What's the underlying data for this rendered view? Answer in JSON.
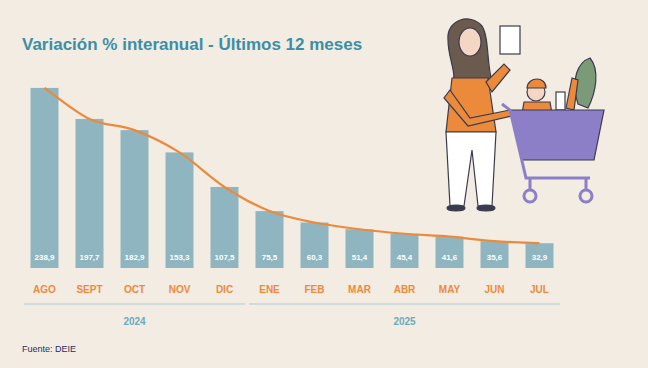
{
  "chart_data": {
    "type": "bar",
    "title": "Variación % interanual - Últimos 12 meses",
    "categories": [
      "AGO",
      "SEPT",
      "OCT",
      "NOV",
      "DIC",
      "ENE",
      "FEB",
      "MAR",
      "ABR",
      "MAY",
      "JUN",
      "JUL"
    ],
    "series": [
      {
        "type": "bar",
        "color": "#8fb5c0",
        "values": [
          238.9,
          197.7,
          182.9,
          153.3,
          107.5,
          75.5,
          60.3,
          51.4,
          45.4,
          41.6,
          35.6,
          32.9
        ],
        "value_labels": [
          "238,9",
          "197,7",
          "182,9",
          "153,3",
          "107,5",
          "75,5",
          "60,3",
          "51,4",
          "45,4",
          "41,6",
          "35,6",
          "32,9"
        ]
      },
      {
        "type": "line",
        "color": "#ec8a3c",
        "values": [
          238.9,
          197.7,
          182.9,
          153.3,
          107.5,
          75.5,
          60.3,
          51.4,
          45.4,
          41.6,
          35.6,
          32.9
        ]
      }
    ],
    "data_labels": true,
    "x_groups": [
      {
        "label": "2024",
        "from": "AGO",
        "to": "DIC"
      },
      {
        "label": "2025",
        "from": "ENE",
        "to": "JUL"
      }
    ],
    "ylim": [
      0,
      260
    ],
    "yticks": [],
    "tick_labels": "x",
    "grid": false,
    "source": "Fuente: DEIE"
  }
}
